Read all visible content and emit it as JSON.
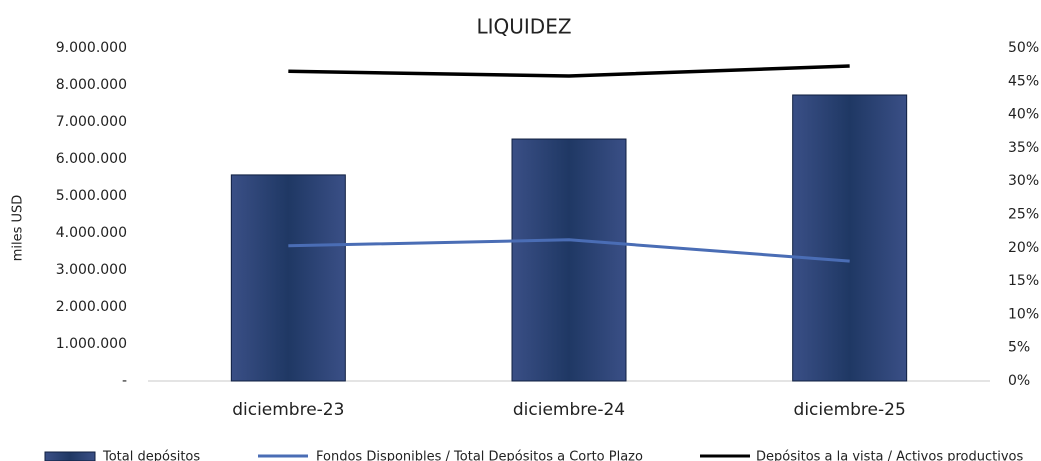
{
  "chart_data": {
    "type": "bar",
    "title": "LIQUIDEZ",
    "y_label": "miles USD",
    "categories": [
      "diciembre-23",
      "diciembre-24",
      "diciembre-25"
    ],
    "series": [
      {
        "name": "Total depósitos",
        "type": "bar",
        "color": "#1f3864",
        "values": [
          5570000,
          6540000,
          7730000
        ]
      },
      {
        "name": "Fondos Disponibles / Total Depósitos a Corto Plazo",
        "type": "line",
        "axis": "y2",
        "color": "#4a6db5",
        "values": [
          20.3,
          21.2,
          18.0
        ]
      },
      {
        "name": "Depósitos a la vista / Activos productivos",
        "type": "line",
        "axis": "y2",
        "color": "#000000",
        "values": [
          46.5,
          45.8,
          47.3
        ]
      }
    ],
    "ylim": [
      0,
      9000000
    ],
    "yticks": [
      {
        "value": 0,
        "label": "-"
      },
      {
        "value": 1000000,
        "label": "1.000.000"
      },
      {
        "value": 2000000,
        "label": "2.000.000"
      },
      {
        "value": 3000000,
        "label": "3.000.000"
      },
      {
        "value": 4000000,
        "label": "4.000.000"
      },
      {
        "value": 5000000,
        "label": "5.000.000"
      },
      {
        "value": 6000000,
        "label": "6.000.000"
      },
      {
        "value": 7000000,
        "label": "7.000.000"
      },
      {
        "value": 8000000,
        "label": "8.000.000"
      },
      {
        "value": 9000000,
        "label": "9.000.000"
      }
    ],
    "y2lim": [
      0,
      50
    ],
    "y2ticks": [
      {
        "value": 0,
        "label": "0%"
      },
      {
        "value": 5,
        "label": "5%"
      },
      {
        "value": 10,
        "label": "10%"
      },
      {
        "value": 15,
        "label": "15%"
      },
      {
        "value": 20,
        "label": "20%"
      },
      {
        "value": 25,
        "label": "25%"
      },
      {
        "value": 30,
        "label": "30%"
      },
      {
        "value": 35,
        "label": "35%"
      },
      {
        "value": 40,
        "label": "40%"
      },
      {
        "value": 45,
        "label": "45%"
      },
      {
        "value": 50,
        "label": "50%"
      }
    ],
    "legend": "bottom"
  }
}
